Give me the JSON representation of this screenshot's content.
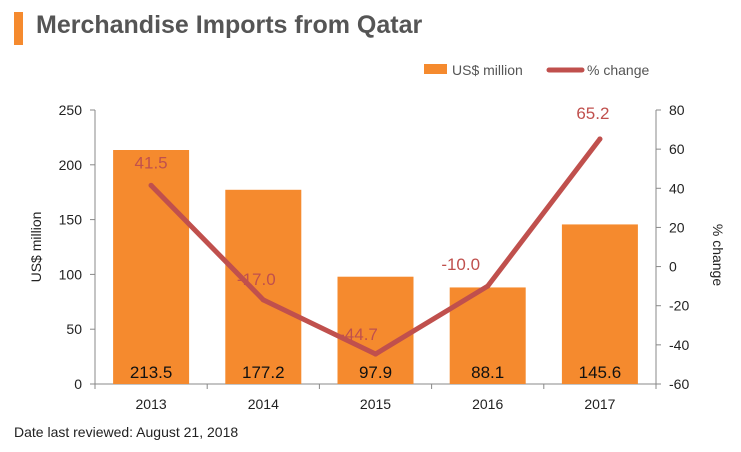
{
  "title": "Merchandise Imports from Qatar",
  "footnote": "Date last reviewed: August 21, 2018",
  "colors": {
    "bar": "#F58A2E",
    "line": "#C0504D",
    "accent": "#F58A2E",
    "title": "#555555",
    "axis": "#888888"
  },
  "chart_data": {
    "type": "bar",
    "categories": [
      "2013",
      "2014",
      "2015",
      "2016",
      "2017"
    ],
    "series": [
      {
        "name": "US$ million",
        "kind": "bar",
        "axis": "left",
        "values": [
          213.5,
          177.2,
          97.9,
          88.1,
          145.6
        ],
        "labels": [
          "213.5",
          "177.2",
          "97.9",
          "88.1",
          "145.6"
        ]
      },
      {
        "name": "% change",
        "kind": "line",
        "axis": "right",
        "values": [
          41.5,
          -17.0,
          -44.7,
          -10.0,
          65.2
        ],
        "labels": [
          "41.5",
          "-17.0",
          "-44.7",
          "-10.0",
          "65.2"
        ]
      }
    ],
    "ylabel": "US$ million",
    "y2label": "% change",
    "ylim": [
      0,
      250
    ],
    "y2lim": [
      -60,
      80
    ],
    "yticks": [
      "0",
      "50",
      "100",
      "150",
      "200",
      "250"
    ],
    "y2ticks": [
      "-60",
      "-40",
      "-20",
      "0",
      "20",
      "40",
      "60",
      "80"
    ],
    "legend": [
      "US$ million",
      "% change"
    ],
    "legend_position": "top-right",
    "grid": false
  }
}
